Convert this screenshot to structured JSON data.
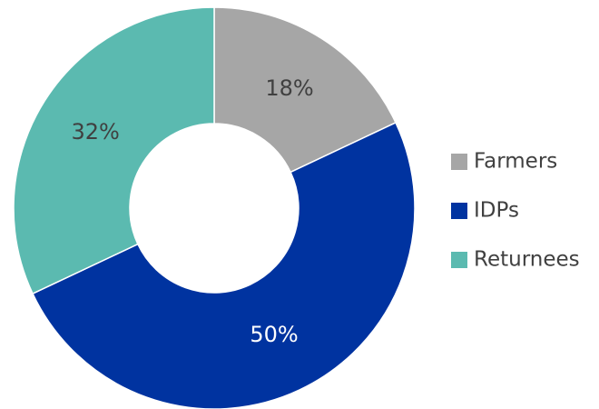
{
  "chart_data": {
    "type": "donut",
    "categories": [
      "Farmers",
      "IDPs",
      "Returnees"
    ],
    "values": [
      18,
      50,
      32
    ],
    "value_labels": [
      "18%",
      "50%",
      "32%"
    ],
    "colors": [
      "#a6a6a6",
      "#0033a0",
      "#5bbab0"
    ],
    "legend": "right"
  }
}
